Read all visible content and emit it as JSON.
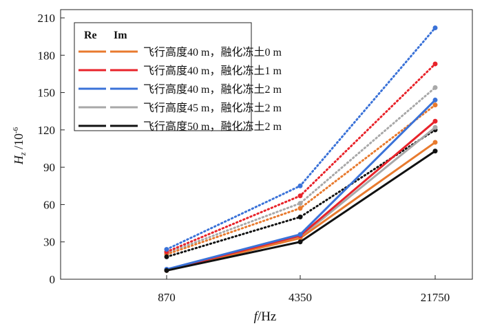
{
  "chart_data": {
    "type": "line",
    "xlabel_italic": "f",
    "xlabel_rest": "/Hz",
    "ylabel_italic": "H",
    "ylabel_sub": "z",
    "ylabel_rest": " /10",
    "ylabel_sup": "-6",
    "categories": [
      "870",
      "4350",
      "21750"
    ],
    "ylim": [
      0,
      210
    ],
    "yticks": [
      0,
      30,
      60,
      90,
      120,
      150,
      180,
      210
    ],
    "legend": {
      "placement": "top-left",
      "header_re": "Re",
      "header_im": "Im"
    },
    "series": [
      {
        "name": "飞行高度40 m，融化冻土0 m",
        "color": "#e87a2e",
        "re": [
          7,
          33,
          110
        ],
        "im": [
          20,
          57,
          140
        ]
      },
      {
        "name": "飞行高度40 m，融化冻土1 m",
        "color": "#e8232a",
        "re": [
          7.5,
          35,
          127
        ],
        "im": [
          22,
          67,
          173
        ]
      },
      {
        "name": "飞行高度40 m，融化冻土2 m",
        "color": "#3a72d8",
        "re": [
          8,
          36,
          144
        ],
        "im": [
          24,
          75,
          202
        ]
      },
      {
        "name": "飞行高度45 m，融化冻土2 m",
        "color": "#a8a8a8",
        "re": [
          7.5,
          34,
          122
        ],
        "im": [
          21,
          61,
          154
        ]
      },
      {
        "name": "飞行高度50 m，融化冻土2 m",
        "color": "#111111",
        "re": [
          7,
          30,
          103
        ],
        "im": [
          18,
          50,
          120
        ]
      }
    ]
  }
}
